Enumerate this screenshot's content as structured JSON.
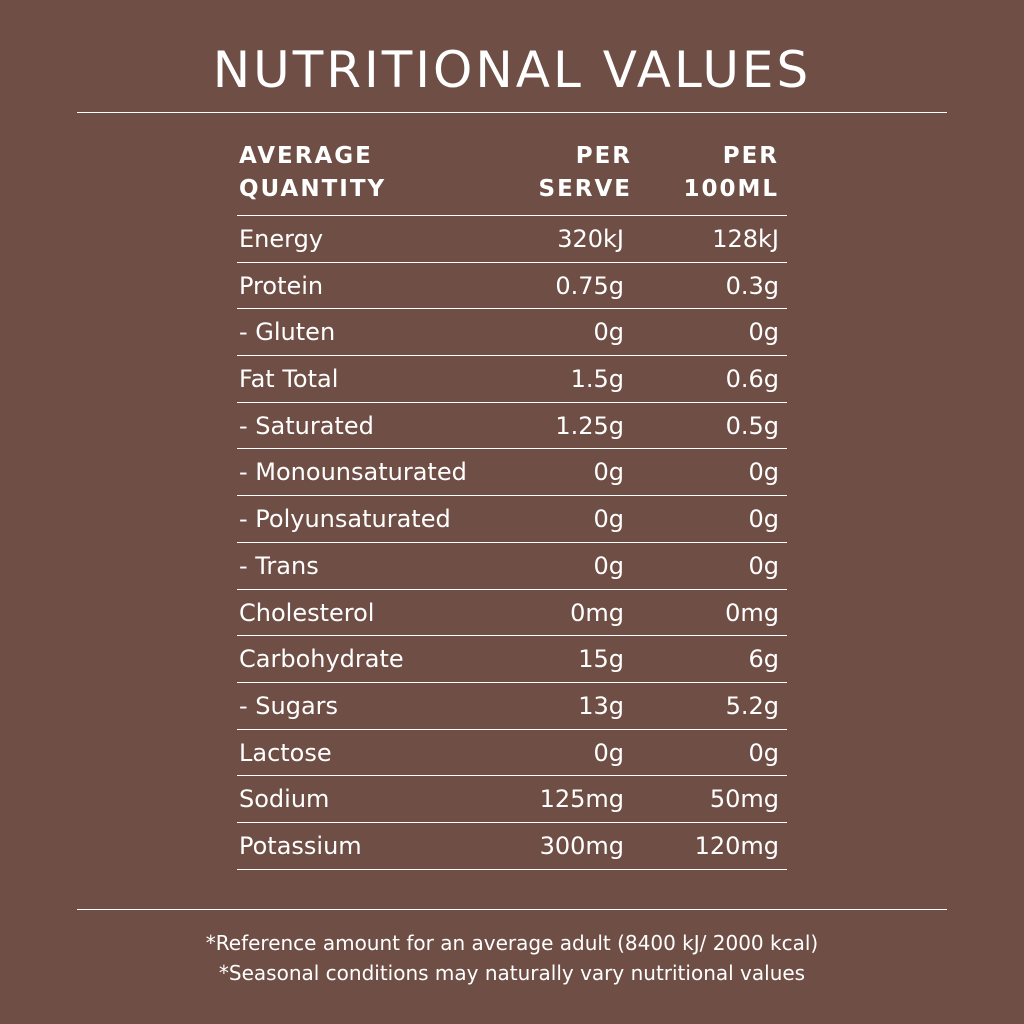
{
  "title": "NUTRITIONAL VALUES",
  "table": {
    "headers": {
      "col1_line1": "AVERAGE",
      "col1_line2": "QUANTITY",
      "col2_line1": "PER",
      "col2_line2": "SERVE",
      "col3_line1": "PER",
      "col3_line2": "100ML"
    },
    "rows": [
      {
        "name": "Energy",
        "per_serve": "320kJ",
        "per_100ml": "128kJ"
      },
      {
        "name": "Protein",
        "per_serve": "0.75g",
        "per_100ml": "0.3g"
      },
      {
        "name": "- Gluten",
        "per_serve": "0g",
        "per_100ml": "0g"
      },
      {
        "name": "Fat Total",
        "per_serve": "1.5g",
        "per_100ml": "0.6g"
      },
      {
        "name": "- Saturated",
        "per_serve": "1.25g",
        "per_100ml": "0.5g"
      },
      {
        "name": "- Monounsaturated",
        "per_serve": "0g",
        "per_100ml": "0g"
      },
      {
        "name": "- Polyunsaturated",
        "per_serve": "0g",
        "per_100ml": "0g"
      },
      {
        "name": "- Trans",
        "per_serve": "0g",
        "per_100ml": "0g"
      },
      {
        "name": "Cholesterol",
        "per_serve": "0mg",
        "per_100ml": "0mg"
      },
      {
        "name": "Carbohydrate",
        "per_serve": "15g",
        "per_100ml": "6g"
      },
      {
        "name": "- Sugars",
        "per_serve": "13g",
        "per_100ml": "5.2g"
      },
      {
        "name": "Lactose",
        "per_serve": "0g",
        "per_100ml": "0g"
      },
      {
        "name": "Sodium",
        "per_serve": "125mg",
        "per_100ml": "50mg"
      },
      {
        "name": "Potassium",
        "per_serve": "300mg",
        "per_100ml": "120mg"
      }
    ]
  },
  "notes": [
    "*Reference amount for an average adult (8400 kJ/ 2000 kcal)",
    "*Seasonal conditions may naturally vary nutritional values"
  ],
  "colors": {
    "background": "#6f4e45",
    "text": "#ffffff"
  }
}
